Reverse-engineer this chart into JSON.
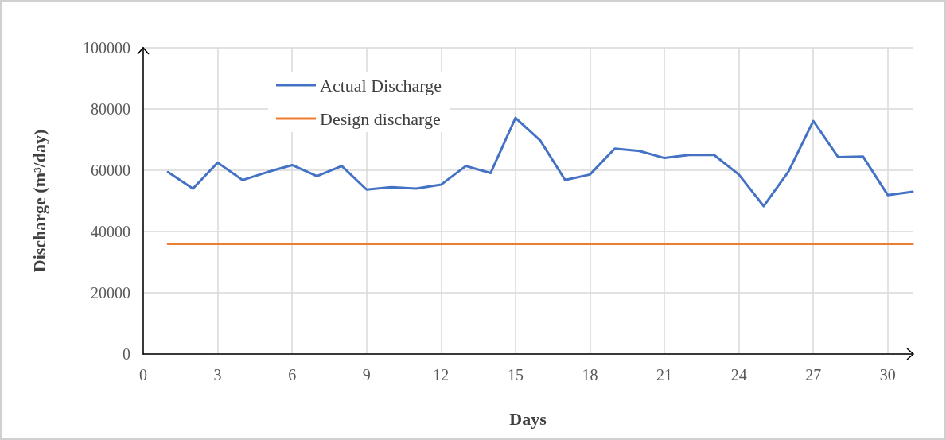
{
  "chart_data": {
    "type": "line",
    "xlabel": "Days",
    "ylabel": "Discharge (m³/day)",
    "x": [
      1,
      2,
      3,
      4,
      5,
      6,
      7,
      8,
      9,
      10,
      11,
      12,
      13,
      14,
      15,
      16,
      17,
      18,
      19,
      20,
      21,
      22,
      23,
      24,
      25,
      26,
      27,
      28,
      29,
      30,
      31
    ],
    "series": [
      {
        "name": "Actual Discharge",
        "color": "#4472c4",
        "values": [
          59400,
          54000,
          62500,
          56800,
          59400,
          61700,
          58100,
          61400,
          53700,
          54500,
          54000,
          55300,
          61400,
          59100,
          77100,
          69700,
          56800,
          58600,
          67100,
          66300,
          64000,
          65000,
          65000,
          58600,
          48300,
          59600,
          76100,
          64300,
          64500,
          51900,
          53000
        ]
      },
      {
        "name": "Design discharge",
        "color": "#ed7d31",
        "values": [
          36000,
          36000,
          36000,
          36000,
          36000,
          36000,
          36000,
          36000,
          36000,
          36000,
          36000,
          36000,
          36000,
          36000,
          36000,
          36000,
          36000,
          36000,
          36000,
          36000,
          36000,
          36000,
          36000,
          36000,
          36000,
          36000,
          36000,
          36000,
          36000,
          36000,
          36000
        ]
      }
    ],
    "xlim": [
      0,
      31
    ],
    "xticks": [
      0,
      3,
      6,
      9,
      12,
      15,
      18,
      21,
      24,
      27,
      30
    ],
    "ylim": [
      0,
      100000
    ],
    "yticks": [
      0,
      20000,
      40000,
      60000,
      80000,
      100000
    ],
    "grid": true,
    "legend": "top left",
    "marker": "none",
    "line_style": "solid"
  }
}
